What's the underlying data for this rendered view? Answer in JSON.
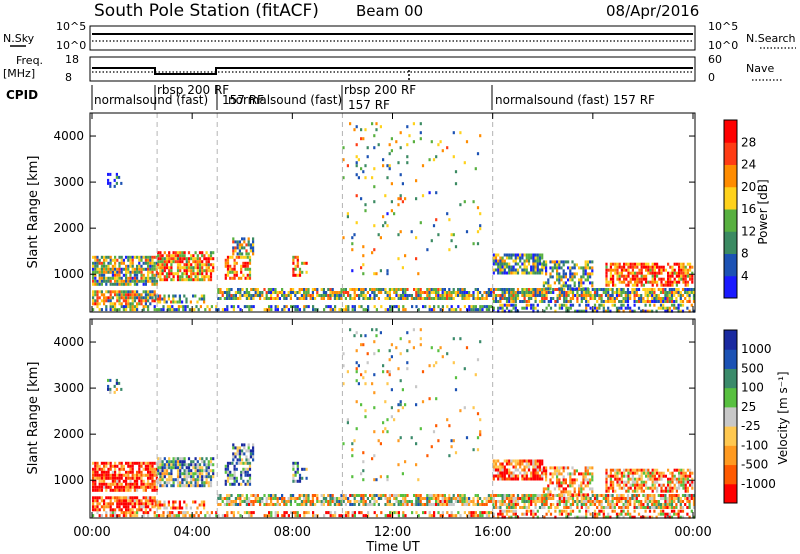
{
  "header": {
    "station": "South Pole Station (fitACF)",
    "beam": "Beam 00",
    "date": "08/Apr/2016"
  },
  "panels": {
    "nsky_label": "N.Sky",
    "nsearch_label": "N.Search",
    "nsky_ticks": [
      "10^5",
      "10^0"
    ],
    "nsearch_ticks": [
      "10^5",
      "10^0"
    ],
    "freq_label_1": "Freq.",
    "freq_label_2": "[MHz]",
    "freq_ticks": [
      "18",
      "8"
    ],
    "nave_label": "Nave",
    "nave_ticks": [
      "60",
      "0"
    ],
    "cpid_label": "CPID"
  },
  "cpid_segments": [
    {
      "label": "normalsound (fast)",
      "start_h": 0
    },
    {
      "label": "rbsp 200 RF",
      "start_h": 2.6
    },
    {
      "label": "157 RF",
      "start_h": 5.0
    },
    {
      "label": "normalsound (fast)",
      "start_h": 5.0
    },
    {
      "label": "rbsp 200 RF",
      "start_h": 10.0
    },
    {
      "label": "157 RF",
      "start_h": 10.0
    },
    {
      "label": "normalsound (fast) 157 RF",
      "start_h": 16.0
    }
  ],
  "chart_data": [
    {
      "type": "heatmap",
      "title": "Power",
      "ylabel": "Slant Range [km]",
      "xlabel": "Time UT",
      "x_ticks": [
        "00:00",
        "04:00",
        "08:00",
        "12:00",
        "16:00",
        "20:00",
        "00:00"
      ],
      "y_ticks": [
        "1000",
        "2000",
        "3000",
        "4000"
      ],
      "xlim_hours": [
        0,
        24
      ],
      "ylim_km": [
        180,
        4500
      ],
      "colorbar_label": "Power [dB]",
      "colorbar_ticks": [
        "28",
        "24",
        "20",
        "16",
        "12",
        "8",
        "4"
      ],
      "colors": [
        "#1a1aff",
        "#1c52b4",
        "#3b8a62",
        "#58b040",
        "#ffd21c",
        "#ff8c00",
        "#ff3c14",
        "#ff0000"
      ]
    },
    {
      "type": "heatmap",
      "title": "Velocity",
      "ylabel": "Slant Range [km]",
      "xlabel": "Time UT",
      "x_ticks": [
        "00:00",
        "04:00",
        "08:00",
        "12:00",
        "16:00",
        "20:00",
        "00:00"
      ],
      "y_ticks": [
        "1000",
        "2000",
        "3000",
        "4000"
      ],
      "xlim_hours": [
        0,
        24
      ],
      "ylim_km": [
        180,
        4500
      ],
      "colorbar_label": "Velocity [m s⁻¹]",
      "colorbar_ticks": [
        "1000",
        "500",
        "100",
        "25",
        "-25",
        "-100",
        "-500",
        "-1000"
      ],
      "colors": [
        "#ff0000",
        "#ff5a00",
        "#ff9a20",
        "#ffc850",
        "#c8c8c8",
        "#58c040",
        "#3a8a6a",
        "#1c52b4",
        "#1a2aa0"
      ]
    }
  ],
  "axis_title": "Time UT"
}
